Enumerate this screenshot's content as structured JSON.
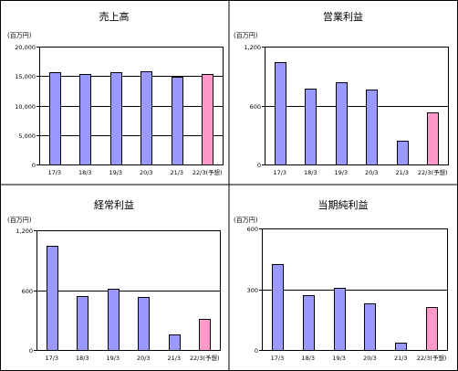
{
  "colors": {
    "actual_fill": "#9999ff",
    "forecast_fill": "#ff99cc",
    "bar_stroke": "#000000",
    "frame": "#000000"
  },
  "chart_data": [
    {
      "type": "bar",
      "title": "売上高",
      "unit": "(百万円)",
      "categories": [
        "17/3",
        "18/3",
        "19/3",
        "20/3",
        "21/3",
        "22/3(予想)"
      ],
      "values": [
        15600,
        15400,
        15700,
        15800,
        14900,
        15300
      ],
      "forecast": [
        false,
        false,
        false,
        false,
        false,
        true
      ],
      "ylim": [
        0,
        20000
      ],
      "yticks": [
        0,
        5000,
        10000,
        15000,
        20000
      ],
      "ytick_labels": [
        "0",
        "5,000",
        "10,000",
        "15,000",
        "20,000"
      ],
      "gridlines": [
        5000,
        10000,
        15000
      ],
      "grid": true
    },
    {
      "type": "bar",
      "title": "営業利益",
      "unit": "(百万円)",
      "categories": [
        "17/3",
        "18/3",
        "19/3",
        "20/3",
        "21/3",
        "22/3(予想)"
      ],
      "values": [
        1045,
        775,
        840,
        760,
        240,
        530
      ],
      "forecast": [
        false,
        false,
        false,
        false,
        false,
        true
      ],
      "ylim": [
        0,
        1200
      ],
      "yticks": [
        0,
        600,
        1200
      ],
      "ytick_labels": [
        "0",
        "600",
        "1,200"
      ],
      "gridlines": [
        600
      ],
      "grid": true
    },
    {
      "type": "bar",
      "title": "経常利益",
      "unit": "(百万円)",
      "categories": [
        "17/3",
        "18/3",
        "19/3",
        "20/3",
        "21/3",
        "22/3(予想)"
      ],
      "values": [
        1040,
        540,
        610,
        530,
        155,
        310
      ],
      "forecast": [
        false,
        false,
        false,
        false,
        false,
        true
      ],
      "ylim": [
        0,
        1200
      ],
      "yticks": [
        0,
        600,
        1200
      ],
      "ytick_labels": [
        "0",
        "600",
        "1,200"
      ],
      "gridlines": [
        600
      ],
      "grid": true
    },
    {
      "type": "bar",
      "title": "当期純利益",
      "unit": "(百万円)",
      "categories": [
        "17/3",
        "18/3",
        "19/3",
        "20/3",
        "21/3",
        "22/3(予想)"
      ],
      "values": [
        425,
        272,
        307,
        228,
        38,
        210
      ],
      "forecast": [
        false,
        false,
        false,
        false,
        false,
        true
      ],
      "ylim": [
        0,
        600
      ],
      "yticks": [
        0,
        300,
        600
      ],
      "ytick_labels": [
        "0",
        "300",
        "600"
      ],
      "gridlines": [
        300
      ],
      "grid": true
    }
  ]
}
